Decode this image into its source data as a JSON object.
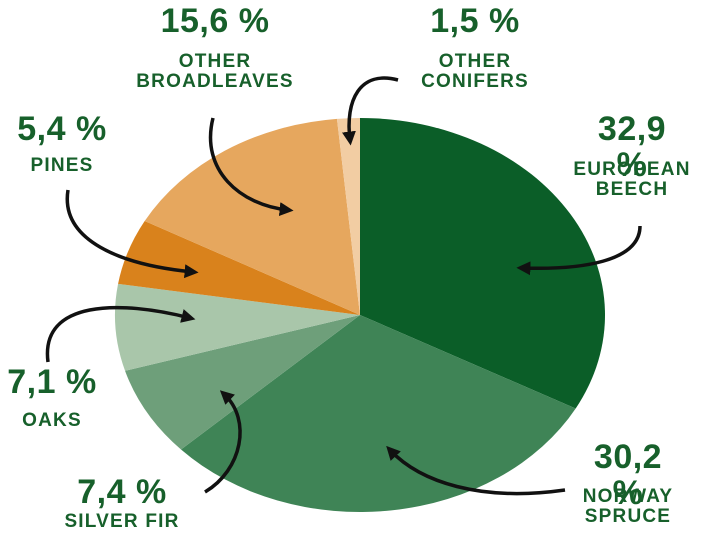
{
  "chart_data": {
    "type": "pie",
    "categories": [
      "EUROPEAN BEECH",
      "NORWAY SPRUCE",
      "SILVER FIR",
      "OAKS",
      "PINES",
      "OTHER BROADLEAVES",
      "OTHER CONIFERS"
    ],
    "values": [
      32.9,
      30.2,
      7.4,
      7.1,
      5.4,
      15.6,
      1.5
    ],
    "value_labels": [
      "32,9 %",
      "30,2 %",
      "7,4 %",
      "7,1 %",
      "5,4 %",
      "15,6 %",
      "1,5 %"
    ],
    "colors": [
      "#0b5e28",
      "#3f8456",
      "#6e9f7a",
      "#a9c6aa",
      "#d9821c",
      "#e6a75e",
      "#f2cda3"
    ]
  }
}
